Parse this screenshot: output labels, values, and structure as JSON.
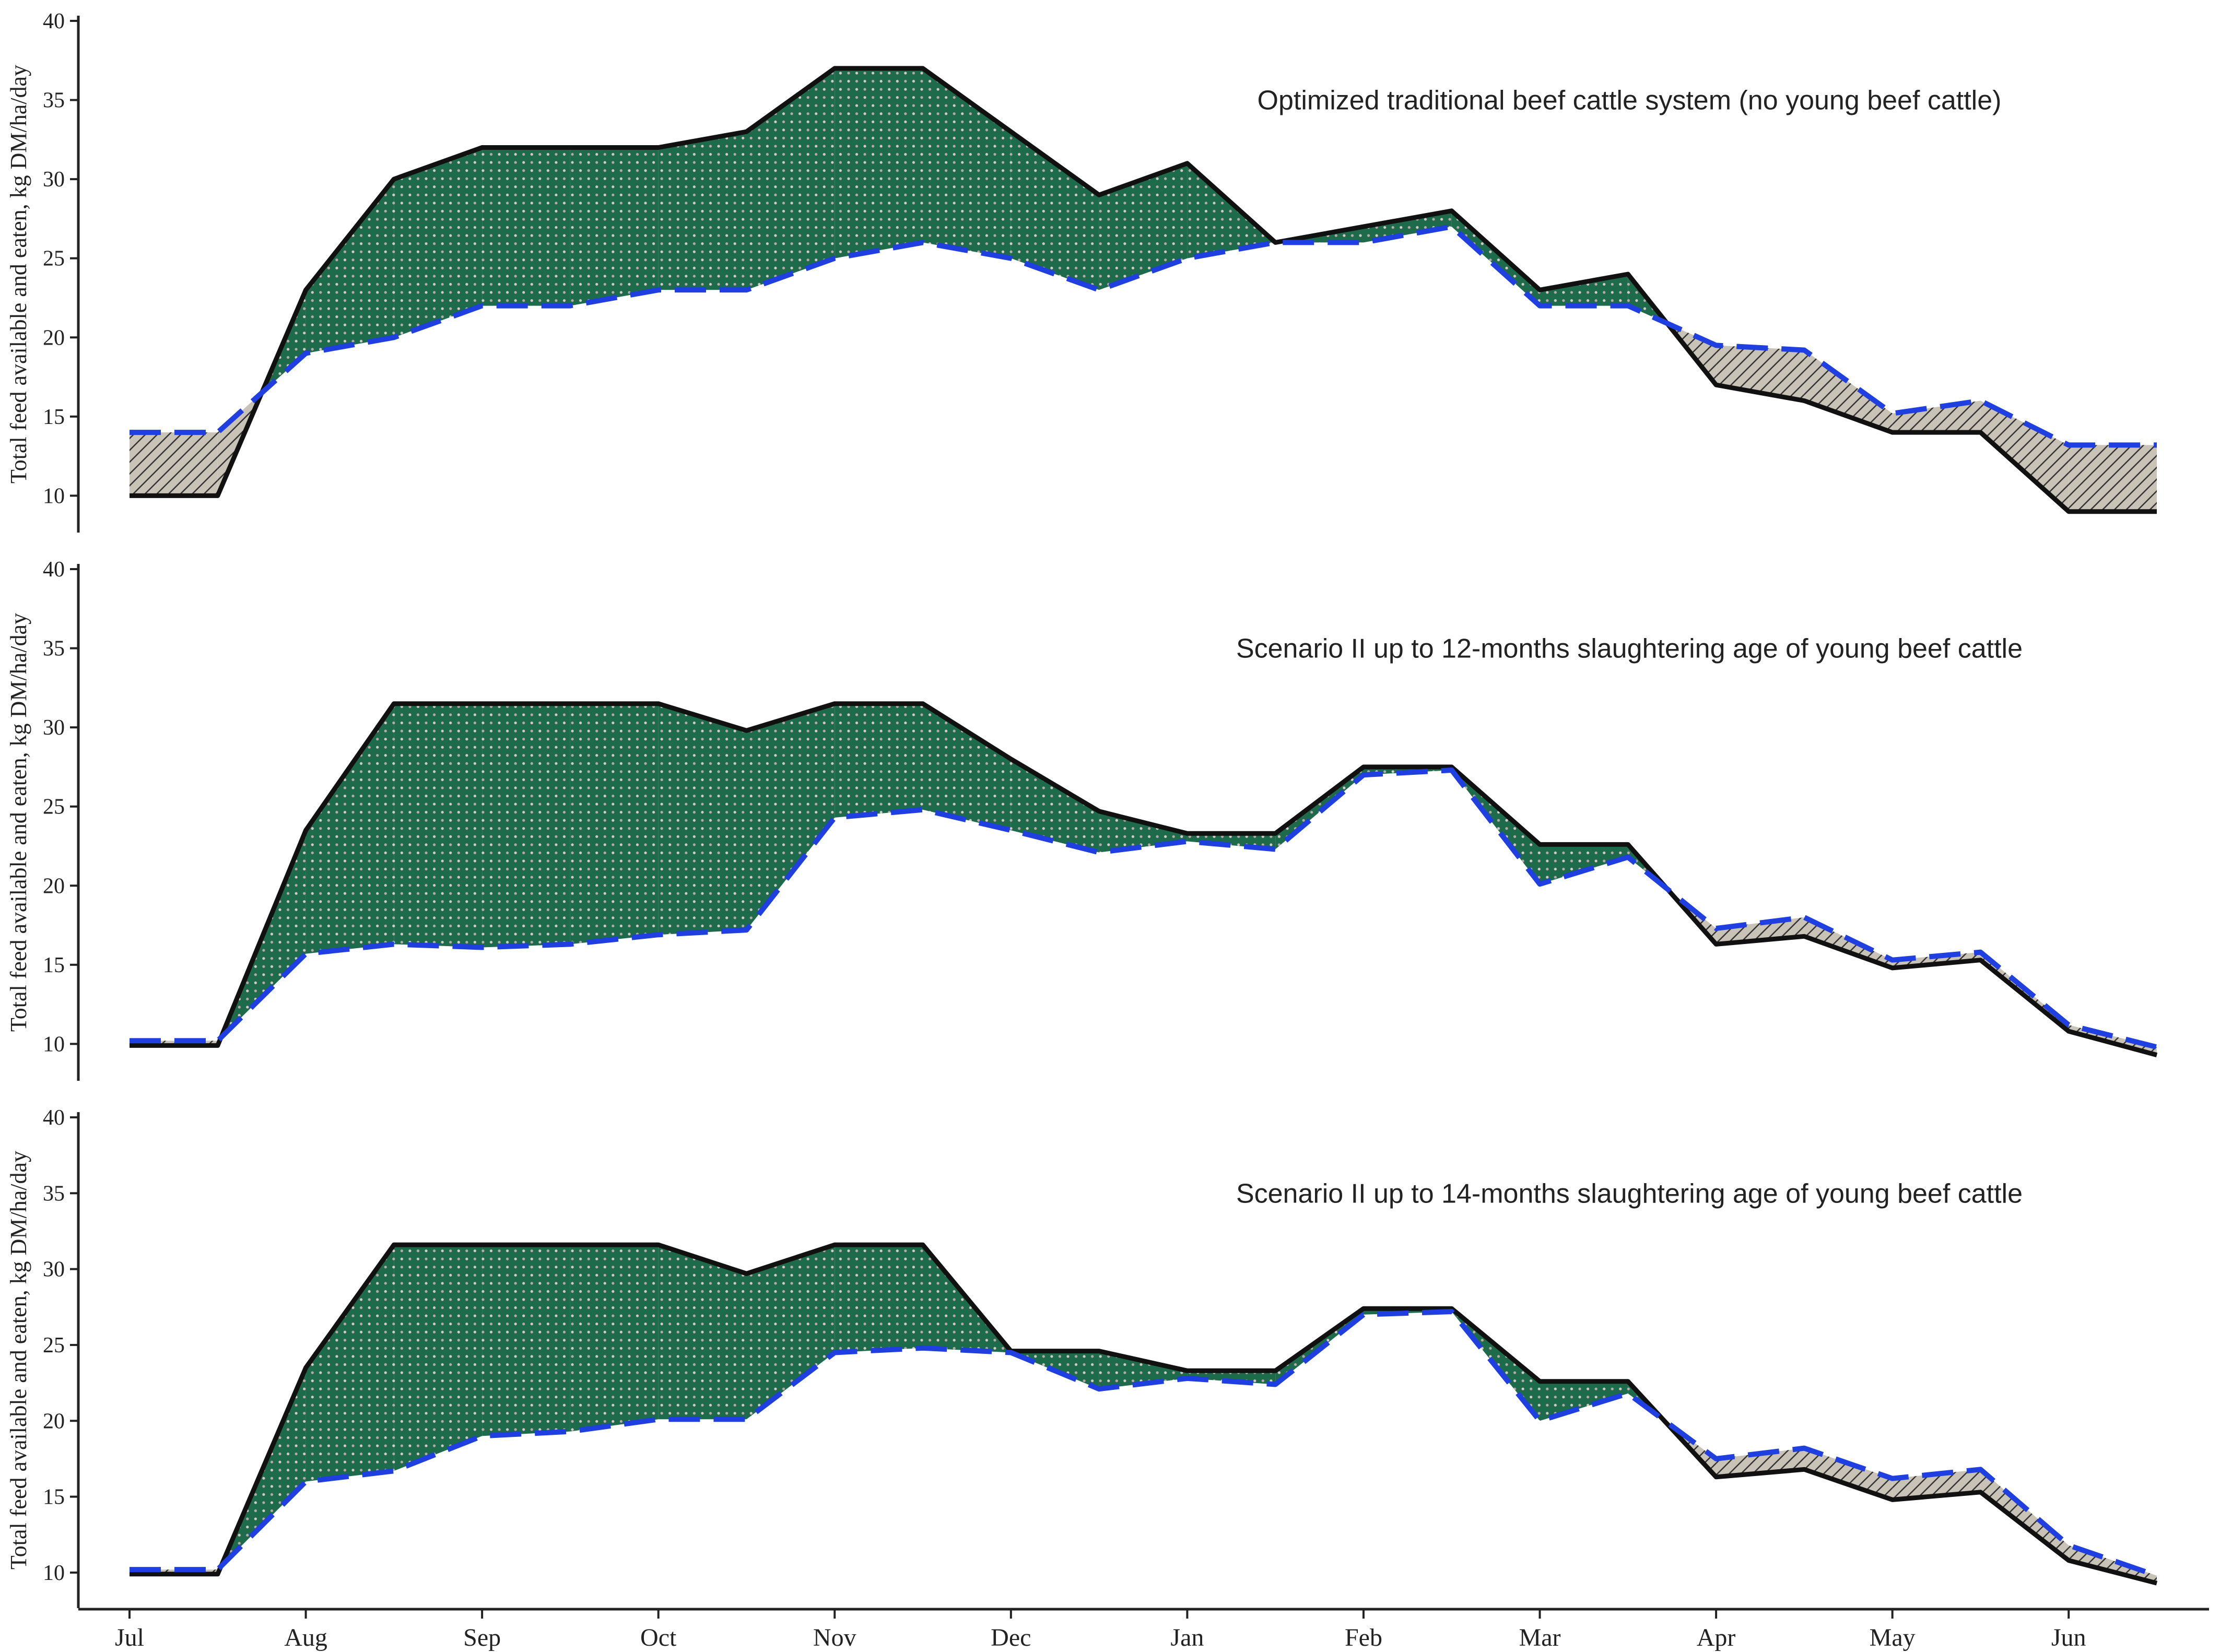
{
  "chart_data": {
    "type": "area",
    "description_note": "Three stacked panels sharing a monthly x axis (Jul-Jun, half-month steps). Solid black line = total feed available; dashed blue line = feed eaten. Green dotted fill where available > eaten (surplus), grey hatched fill where eaten > available (deficit).",
    "x_ticks": [
      "Jul",
      "Aug",
      "Sep",
      "Oct",
      "Nov",
      "Dec",
      "Jan",
      "Feb",
      "Mar",
      "Apr",
      "May",
      "Jun"
    ],
    "x_positions": [
      0,
      0.5,
      1,
      1.5,
      2,
      2.5,
      3,
      3.5,
      4,
      4.5,
      5,
      5.5,
      6,
      6.5,
      7,
      7.5,
      8,
      8.5,
      9,
      9.5,
      10,
      10.5,
      11,
      11.5
    ],
    "ylabel": "Total feed available and eaten, kg DM/ha/day",
    "ylim": [
      8,
      40
    ],
    "yticks": [
      10,
      15,
      20,
      25,
      30,
      35,
      40
    ],
    "colors": {
      "available": "#111111",
      "eaten": "#1f3fe0",
      "surplus_fill": "#1e6b4c",
      "surplus_dots": "#d6c8c8",
      "deficit_fill": "#c9c2b6",
      "deficit_hatch": "#333333"
    },
    "panels": [
      {
        "title": "Optimized traditional beef cattle system (no young beef cattle)",
        "available": [
          10,
          10,
          23,
          30,
          32,
          32,
          32,
          33,
          37,
          37,
          33,
          29,
          31,
          26,
          27,
          28,
          23,
          24,
          17,
          16,
          14,
          14,
          9,
          9
        ],
        "eaten": [
          14,
          14,
          19,
          20,
          22,
          22,
          23,
          23,
          25,
          26,
          25,
          23,
          25,
          26,
          26,
          27,
          22,
          22,
          19.5,
          19.2,
          15.2,
          16,
          13.2,
          13.2
        ]
      },
      {
        "title": "Scenario II up to 12-months slaughtering age of young beef cattle",
        "available": [
          9.9,
          9.9,
          23.5,
          31.5,
          31.5,
          31.5,
          31.5,
          29.8,
          31.5,
          31.5,
          28,
          24.7,
          23.3,
          23.3,
          27.5,
          27.5,
          22.6,
          22.6,
          16.3,
          16.8,
          14.8,
          15.3,
          10.8,
          9.3
        ],
        "eaten": [
          10.2,
          10.2,
          15.7,
          16.3,
          16.1,
          16.3,
          16.9,
          17.2,
          24.3,
          24.8,
          23.5,
          22.1,
          22.8,
          22.3,
          27,
          27.3,
          20.1,
          21.8,
          17.3,
          18,
          15.3,
          15.8,
          11.2,
          9.8
        ]
      },
      {
        "title": "Scenario II up to 14-months slaughtering age of young beef cattle",
        "available": [
          9.9,
          9.9,
          23.5,
          31.6,
          31.6,
          31.6,
          31.6,
          29.7,
          31.6,
          31.6,
          24.6,
          24.6,
          23.3,
          23.3,
          27.4,
          27.4,
          22.6,
          22.6,
          16.3,
          16.8,
          14.8,
          15.3,
          10.8,
          9.3
        ],
        "eaten": [
          10.2,
          10.2,
          16,
          16.7,
          19,
          19.3,
          20.1,
          20.1,
          24.5,
          24.8,
          24.5,
          22.1,
          22.8,
          22.4,
          27,
          27.2,
          20,
          21.8,
          17.5,
          18.2,
          16.2,
          16.8,
          11.8,
          9.8
        ]
      }
    ]
  }
}
